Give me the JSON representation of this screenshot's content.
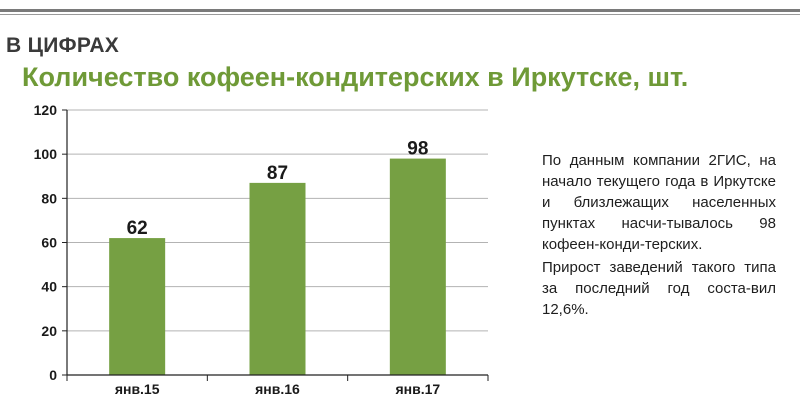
{
  "header": {
    "section_label": "В ЦИФРАХ"
  },
  "chart_data": {
    "type": "bar",
    "title": "Количество кофеен-кондитерских в Иркутске, шт.",
    "categories": [
      "янв.15",
      "янв.16",
      "янв.17"
    ],
    "values": [
      62,
      87,
      98
    ],
    "data_labels": [
      "62",
      "87",
      "98"
    ],
    "ylim": [
      0,
      120
    ],
    "yticks": [
      0,
      20,
      40,
      60,
      80,
      100,
      120
    ],
    "grid": true,
    "xlabel": "",
    "ylabel": "",
    "bar_color": "#76a043"
  },
  "note": {
    "paragraph_1": "По данным компании 2ГИС, на начало текущего года в Иркутске и близлежащих населенных пунктах насчи-тывалось 98 кофеен-конди-терских.",
    "paragraph_2": "Прирост заведений такого типа за последний год соста-вил 12,6%."
  }
}
